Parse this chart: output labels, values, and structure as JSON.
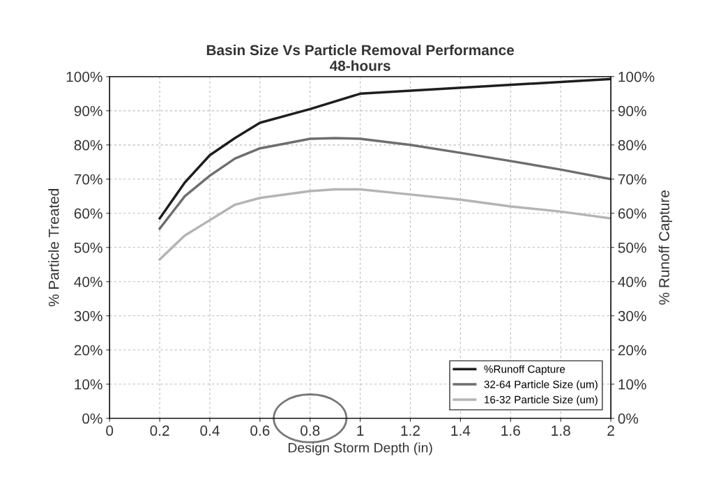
{
  "chart_data": {
    "type": "line",
    "title": "Basin Size Vs Particle Removal Performance\n48-hours",
    "xlabel": "Design Storm Depth (in)",
    "ylabel": "% Particle Treated",
    "y2label": "% Runoff Capture",
    "xlim": [
      0,
      2
    ],
    "xticks": [
      0,
      0.2,
      0.4,
      0.6,
      0.8,
      1,
      1.2,
      1.4,
      1.6,
      1.8,
      2
    ],
    "ylim": [
      0,
      100
    ],
    "yticks": [
      {
        "value": 0,
        "label": "0%"
      },
      {
        "value": 10,
        "label": "10%"
      },
      {
        "value": 20,
        "label": "20%"
      },
      {
        "value": 30,
        "label": "30%"
      },
      {
        "value": 40,
        "label": "40%"
      },
      {
        "value": 50,
        "label": "50%"
      },
      {
        "value": 60,
        "label": "60%"
      },
      {
        "value": 70,
        "label": "70%"
      },
      {
        "value": 80,
        "label": "80%"
      },
      {
        "value": 90,
        "label": "90%"
      },
      {
        "value": 100,
        "label": "100%"
      }
    ],
    "y2lim": [
      0,
      100
    ],
    "y2ticks": [
      {
        "value": 0,
        "label": "0%"
      },
      {
        "value": 10,
        "label": "10%"
      },
      {
        "value": 20,
        "label": "20%"
      },
      {
        "value": 30,
        "label": "30%"
      },
      {
        "value": 40,
        "label": "40%"
      },
      {
        "value": 50,
        "label": "50%"
      },
      {
        "value": 60,
        "label": "60%"
      },
      {
        "value": 70,
        "label": "70%"
      },
      {
        "value": 80,
        "label": "80%"
      },
      {
        "value": 90,
        "label": "90%"
      },
      {
        "value": 100,
        "label": "100%"
      }
    ],
    "grid": true,
    "legend": "bottom right",
    "marker": "none",
    "line_style": "solid",
    "series": [
      {
        "name": "%Runoff Capture",
        "color": "#1e1e1e",
        "axis": "y2",
        "x": [
          0.2,
          0.3,
          0.4,
          0.5,
          0.6,
          0.8,
          1.0,
          2.0
        ],
        "values": [
          58.5,
          69,
          77,
          82,
          86.5,
          90.5,
          95,
          99.3
        ]
      },
      {
        "name": "32-64 Particle Size (um)",
        "color": "#6e6e6e",
        "x": [
          0.2,
          0.3,
          0.4,
          0.5,
          0.6,
          0.8,
          0.9,
          1.0,
          1.2,
          1.4,
          1.6,
          1.8,
          2.0
        ],
        "values": [
          55.5,
          65,
          71,
          76,
          79,
          81.8,
          82,
          81.8,
          80,
          77.7,
          75.3,
          72.8,
          70
        ]
      },
      {
        "name": "16-32 Particle Size (um)",
        "color": "#b4b4b4",
        "x": [
          0.2,
          0.3,
          0.4,
          0.5,
          0.6,
          0.8,
          0.9,
          1.0,
          1.2,
          1.4,
          1.6,
          1.8,
          2.0
        ],
        "values": [
          46.5,
          53.5,
          58,
          62.5,
          64.5,
          66.5,
          67,
          67,
          65.5,
          64,
          62,
          60.5,
          58.5
        ]
      }
    ]
  }
}
